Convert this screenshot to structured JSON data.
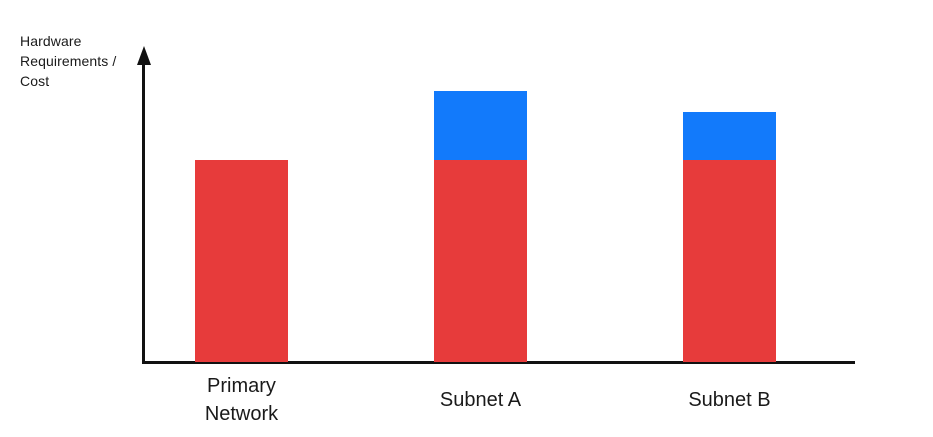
{
  "figure": {
    "background": "#FFFFFF"
  },
  "colors": {
    "background": "#FFFFFF",
    "red": "#E73B3B",
    "blue": "#127AFB",
    "axis": "#111111",
    "text": "#1A1A1A"
  },
  "chart_data": {
    "type": "bar",
    "stacked": true,
    "title": "",
    "ylabel": "Hardware Requirements / Cost",
    "xlabel": "",
    "categories": [
      "Primary Network",
      "Subnet A",
      "Subnet B"
    ],
    "series": [
      {
        "name": "red-base-segment",
        "color_key": "red",
        "values": [
          100,
          100,
          100
        ]
      },
      {
        "name": "blue-additional-segment",
        "color_key": "blue",
        "values": [
          0,
          34,
          24
        ]
      }
    ],
    "ylim": [
      0,
      150
    ],
    "grid": false,
    "legend": "none",
    "axis_style": "y-axis with arrowhead, no ticks or numeric labels",
    "note": "No numeric scale shown; values are relative units estimated from bar pixel heights (red base segment = 100)."
  }
}
